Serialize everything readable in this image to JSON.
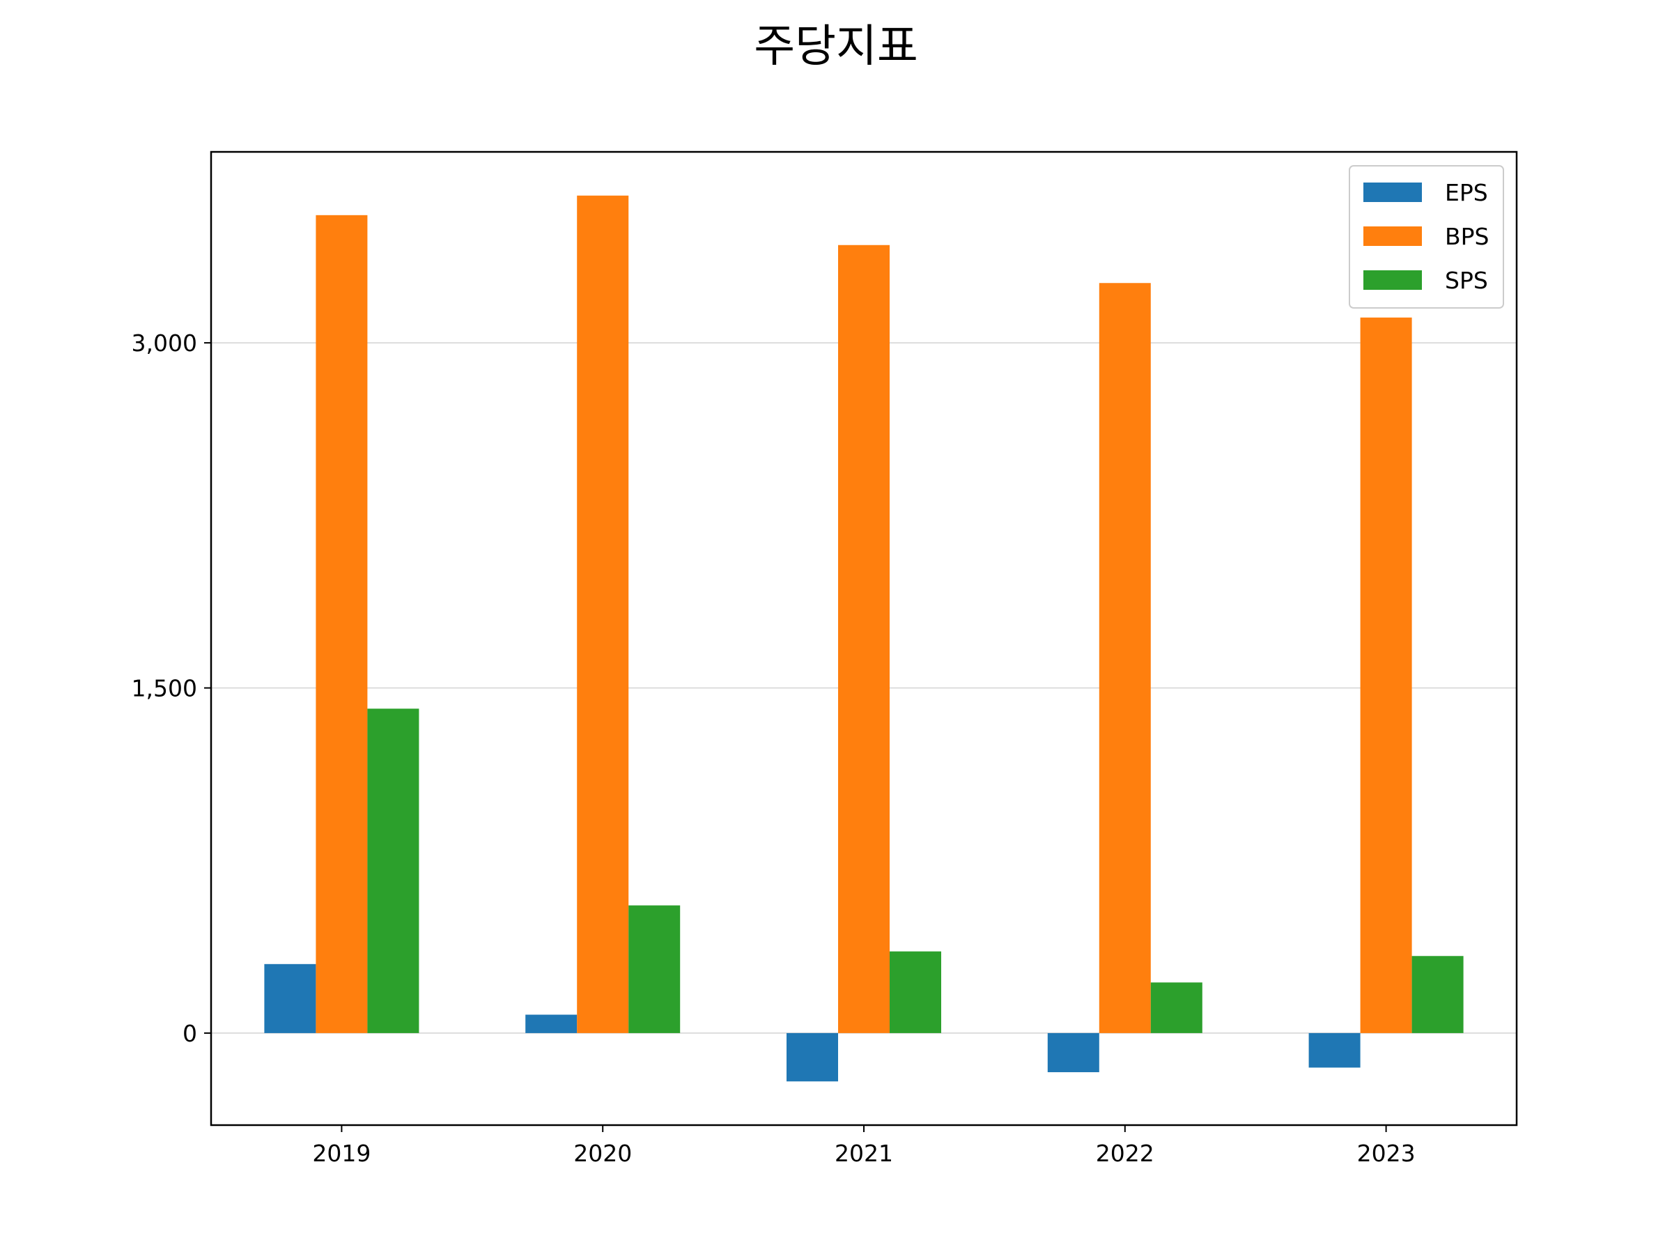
{
  "chart_data": {
    "type": "bar",
    "title": "주당지표",
    "xlabel": "",
    "ylabel": "",
    "categories": [
      "2019",
      "2020",
      "2021",
      "2022",
      "2023"
    ],
    "series": [
      {
        "name": "EPS",
        "color": "#1f77b4",
        "values": [
          300,
          80,
          -210,
          -170,
          -150
        ]
      },
      {
        "name": "BPS",
        "color": "#ff7f0e",
        "values": [
          3555,
          3640,
          3425,
          3260,
          3110
        ]
      },
      {
        "name": "SPS",
        "color": "#2ca02c",
        "values": [
          1410,
          555,
          355,
          220,
          335
        ]
      }
    ],
    "ylim": [
      -400,
      3830
    ],
    "yticks": [
      0,
      1500,
      3000
    ],
    "ytick_labels": [
      "0",
      "1,500",
      "3,000"
    ],
    "grid": "horizontal",
    "legend_position": "top-right"
  }
}
